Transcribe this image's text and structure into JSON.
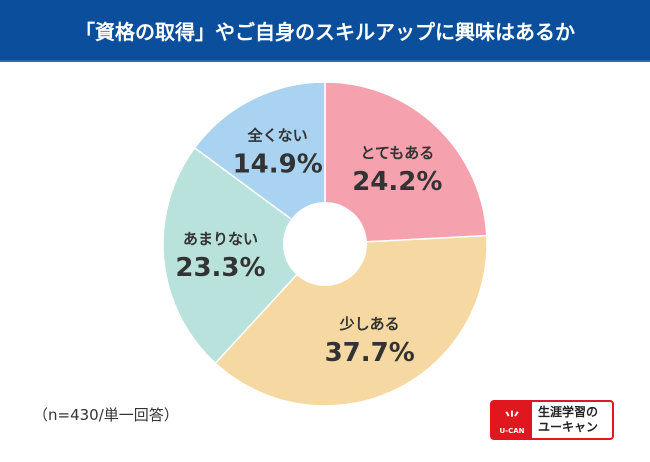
{
  "chart_data": {
    "type": "pie",
    "title": "「資格の取得」やご自身のスキルアップに興味はあるか",
    "categories": [
      "とてもある",
      "少しある",
      "あまりない",
      "全くない"
    ],
    "values": [
      24.2,
      37.7,
      23.3,
      14.9
    ],
    "labels": [
      "24.2%",
      "37.7%",
      "23.3%",
      "14.9%"
    ],
    "colors": [
      "#f5a2ae",
      "#f6d9a2",
      "#b9e2dd",
      "#aad3f1"
    ],
    "note": "（n=430/単一回答）"
  },
  "logo": {
    "mark": "U-CAN",
    "line1": "生涯学習の",
    "line2": "ユーキャン"
  }
}
